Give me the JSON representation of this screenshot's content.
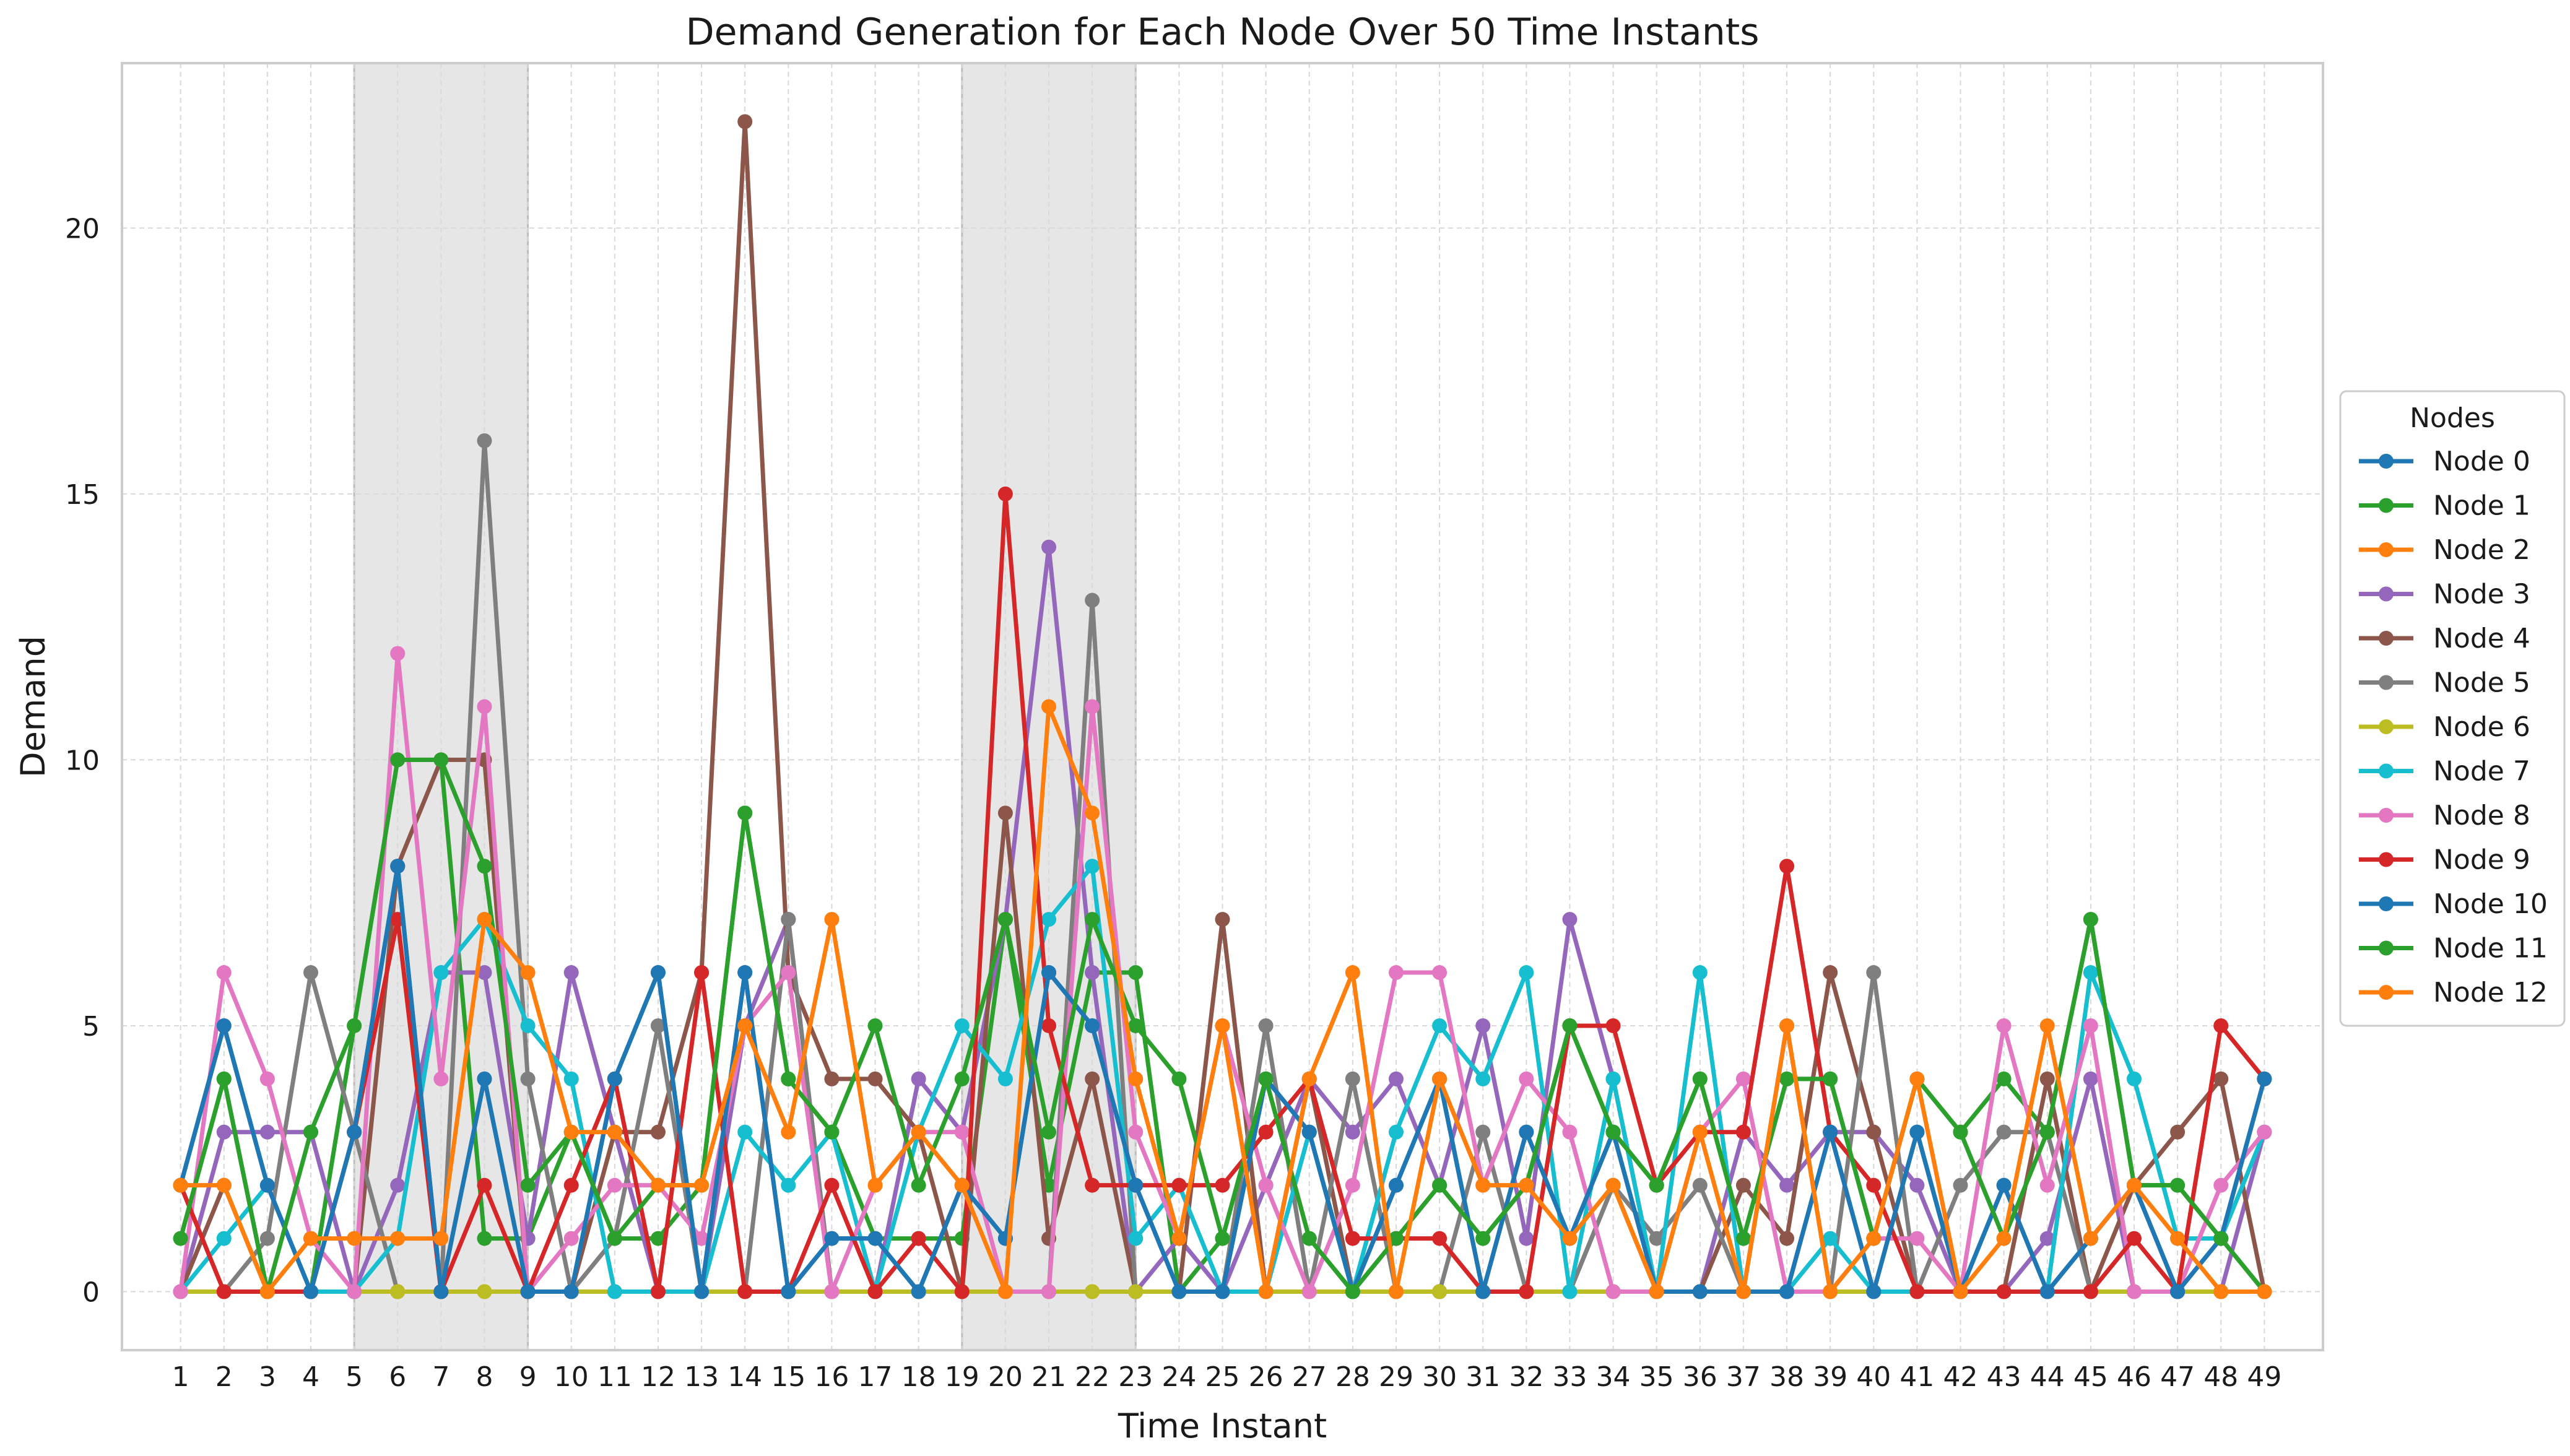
{
  "chart_data": {
    "type": "line",
    "title": "Demand Generation for Each Node Over 50 Time Instants",
    "xlabel": "Time Instant",
    "ylabel": "Demand",
    "x": [
      1,
      2,
      3,
      4,
      5,
      6,
      7,
      8,
      9,
      10,
      11,
      12,
      13,
      14,
      15,
      16,
      17,
      18,
      19,
      20,
      21,
      22,
      23,
      24,
      25,
      26,
      27,
      28,
      29,
      30,
      31,
      32,
      33,
      34,
      35,
      36,
      37,
      38,
      39,
      40,
      41,
      42,
      43,
      44,
      45,
      46,
      47,
      48,
      49
    ],
    "xlim": [
      -0.35,
      50.35
    ],
    "ylim": [
      -1.1,
      23.1
    ],
    "yticks": [
      0,
      5,
      10,
      15,
      20
    ],
    "grid": true,
    "shaded_ranges": [
      [
        5,
        9
      ],
      [
        19,
        23
      ]
    ],
    "legend": {
      "title": "Nodes",
      "position": "right"
    },
    "series": [
      {
        "name": "Node 0",
        "color": "#1f77b4",
        "values": [
          2,
          5,
          2,
          0,
          3,
          8,
          0,
          4,
          0,
          0,
          4,
          6,
          0,
          6,
          0,
          1,
          1,
          0,
          2,
          1,
          6,
          5,
          2,
          0,
          0,
          4,
          3,
          0,
          2,
          4,
          0,
          3,
          1,
          3,
          0,
          0,
          0,
          0,
          3,
          0,
          3,
          0,
          2,
          0,
          1,
          2,
          0,
          1,
          4
        ]
      },
      {
        "name": "Node 1",
        "color": "#2ca02c",
        "values": [
          1,
          4,
          0,
          0,
          5,
          10,
          10,
          1,
          1,
          3,
          1,
          1,
          2,
          9,
          4,
          3,
          1,
          1,
          1,
          7,
          2,
          6,
          6,
          0,
          1,
          4,
          1,
          0,
          1,
          2,
          1,
          2,
          5,
          3,
          2,
          4,
          1,
          4,
          4,
          1,
          4,
          3,
          4,
          3,
          7,
          2,
          2,
          1,
          0
        ]
      },
      {
        "name": "Node 2",
        "color": "#ff7f0e",
        "values": [
          0,
          0,
          0,
          0,
          0,
          0,
          0,
          0,
          0,
          0,
          0,
          0,
          0,
          0,
          0,
          0,
          0,
          0,
          0,
          0,
          0,
          0,
          0,
          0,
          0,
          0,
          0,
          0,
          0,
          0,
          0,
          0,
          0,
          0,
          0,
          0,
          0,
          0,
          0,
          0,
          0,
          0,
          0,
          0,
          0,
          0,
          0,
          0,
          0
        ]
      },
      {
        "name": "Node 3",
        "color": "#9467bd",
        "values": [
          0,
          3,
          3,
          3,
          0,
          2,
          6,
          6,
          1,
          6,
          3,
          0,
          0,
          5,
          7,
          0,
          0,
          4,
          3,
          7,
          14,
          6,
          0,
          1,
          0,
          2,
          4,
          3,
          4,
          2,
          5,
          1,
          7,
          4,
          0,
          0,
          3,
          2,
          3,
          3,
          2,
          0,
          0,
          1,
          4,
          0,
          0,
          0,
          3
        ]
      },
      {
        "name": "Node 4",
        "color": "#8c564b",
        "values": [
          0,
          2,
          0,
          0,
          0,
          8,
          10,
          10,
          0,
          0,
          3,
          3,
          6,
          22,
          6,
          4,
          4,
          3,
          0,
          9,
          1,
          4,
          0,
          0,
          7,
          0,
          4,
          0,
          0,
          0,
          0,
          0,
          0,
          2,
          0,
          0,
          2,
          1,
          6,
          3,
          0,
          0,
          0,
          4,
          0,
          2,
          3,
          4,
          0
        ]
      },
      {
        "name": "Node 5",
        "color": "#7f7f7f",
        "values": [
          0,
          0,
          1,
          6,
          3,
          0,
          0,
          16,
          4,
          0,
          1,
          5,
          0,
          0,
          7,
          0,
          0,
          0,
          0,
          0,
          0,
          13,
          0,
          0,
          0,
          5,
          0,
          4,
          0,
          0,
          3,
          0,
          0,
          2,
          1,
          2,
          0,
          5,
          0,
          6,
          0,
          2,
          3,
          3,
          0,
          0,
          0,
          0,
          0
        ]
      },
      {
        "name": "Node 6",
        "color": "#bcbd22",
        "values": [
          0,
          0,
          0,
          0,
          0,
          0,
          0,
          0,
          0,
          0,
          0,
          0,
          0,
          0,
          0,
          0,
          0,
          0,
          0,
          0,
          0,
          0,
          0,
          0,
          0,
          0,
          0,
          0,
          0,
          0,
          0,
          0,
          0,
          0,
          0,
          0,
          0,
          0,
          0,
          0,
          0,
          0,
          0,
          0,
          0,
          0,
          0,
          0,
          0
        ]
      },
      {
        "name": "Node 7",
        "color": "#17becf",
        "values": [
          0,
          1,
          2,
          0,
          0,
          1,
          6,
          7,
          5,
          4,
          0,
          0,
          0,
          3,
          2,
          3,
          0,
          3,
          5,
          4,
          7,
          8,
          1,
          2,
          0,
          0,
          3,
          0,
          3,
          5,
          4,
          6,
          0,
          4,
          0,
          6,
          0,
          0,
          1,
          0,
          0,
          0,
          0,
          0,
          6,
          4,
          1,
          1,
          3
        ]
      },
      {
        "name": "Node 8",
        "color": "#e377c2",
        "values": [
          0,
          6,
          4,
          1,
          0,
          12,
          4,
          11,
          0,
          1,
          2,
          2,
          1,
          5,
          6,
          0,
          2,
          3,
          3,
          0,
          0,
          11,
          3,
          1,
          5,
          2,
          0,
          2,
          6,
          6,
          2,
          4,
          3,
          0,
          0,
          3,
          4,
          0,
          0,
          1,
          1,
          0,
          5,
          2,
          5,
          0,
          0,
          2,
          3
        ]
      },
      {
        "name": "Node 9",
        "color": "#d62728",
        "values": [
          2,
          0,
          0,
          0,
          3,
          7,
          0,
          2,
          0,
          2,
          4,
          0,
          6,
          0,
          0,
          2,
          0,
          1,
          0,
          15,
          5,
          2,
          2,
          2,
          2,
          3,
          4,
          1,
          1,
          1,
          0,
          0,
          5,
          5,
          2,
          3,
          3,
          8,
          3,
          2,
          0,
          0,
          0,
          0,
          0,
          1,
          0,
          5,
          4
        ]
      },
      {
        "name": "Node 10",
        "color": "#1f77b4",
        "values": [
          2,
          5,
          2,
          0,
          3,
          8,
          0,
          4,
          0,
          0,
          4,
          6,
          0,
          6,
          0,
          1,
          1,
          0,
          2,
          1,
          6,
          5,
          2,
          0,
          0,
          4,
          3,
          0,
          2,
          4,
          0,
          3,
          1,
          3,
          0,
          0,
          0,
          0,
          3,
          0,
          3,
          0,
          2,
          0,
          1,
          2,
          0,
          1,
          4
        ]
      },
      {
        "name": "Node 11",
        "color": "#2ca02c",
        "values": [
          1,
          4,
          0,
          3,
          5,
          10,
          10,
          8,
          2,
          3,
          1,
          2,
          2,
          9,
          4,
          3,
          5,
          2,
          4,
          7,
          3,
          7,
          5,
          4,
          1,
          4,
          1,
          0,
          1,
          2,
          1,
          2,
          5,
          3,
          2,
          4,
          1,
          4,
          4,
          1,
          4,
          3,
          1,
          3,
          7,
          2,
          2,
          1,
          0
        ]
      },
      {
        "name": "Node 12",
        "color": "#ff7f0e",
        "values": [
          2,
          2,
          0,
          1,
          1,
          1,
          1,
          7,
          6,
          3,
          3,
          2,
          2,
          5,
          3,
          7,
          2,
          3,
          2,
          0,
          11,
          9,
          4,
          1,
          5,
          0,
          4,
          6,
          0,
          4,
          2,
          2,
          1,
          2,
          0,
          3,
          0,
          5,
          0,
          1,
          4,
          0,
          1,
          5,
          1,
          2,
          1,
          0,
          0
        ]
      }
    ]
  }
}
